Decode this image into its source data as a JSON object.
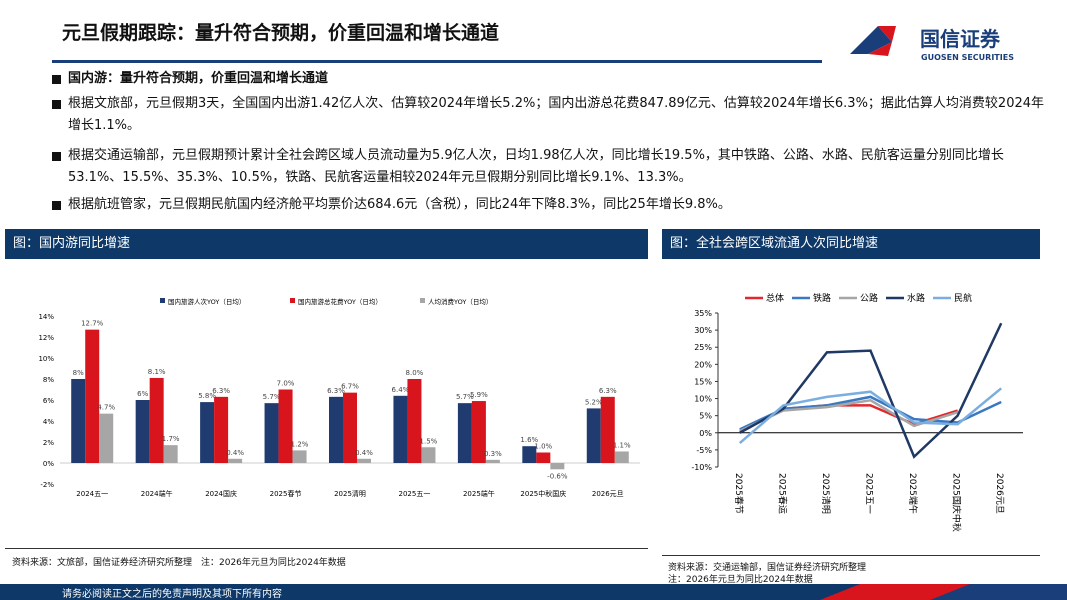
{
  "header": {
    "title": "元旦假期跟踪：量升符合预期，价重回温和增长通道",
    "logo": "国信证券",
    "logo_en": "GUOSEN SECURITIES"
  },
  "bullets": [
    "国内游：量升符合预期，价重回温和增长通道",
    "根据文旅部，元旦假期3天，全国国内出游1.42亿人次、估算较2024年增长5.2%；国内出游总花费847.89亿元、估算较2024年增长6.3%；据此估算人均消费较2024年增长1.1%。",
    "根据交通运输部，元旦假期预计累计全社会跨区域人员流动量为5.9亿人次，日均1.98亿人次，同比增长19.5%，其中铁路、公路、水路、民航客运量分别同比增长53.1%、15.5%、35.3%、10.5%，铁路、民航客运量相较2024年元旦假期分别同比增长9.1%、13.3%。",
    "根据航班管家，元旦假期民航国内经济舱平均票价达684.6元（含税），同比24年下降8.3%，同比25年增长9.8%。"
  ],
  "chart_data": [
    {
      "type": "bar",
      "title": "图：国内游同比增速",
      "source": "资料来源：文旅部，国信证券经济研究所整理　注：2026年元旦为同比2024年数据",
      "categories": [
        "2024五一",
        "2024端午",
        "2024国庆",
        "2025春节",
        "2025清明",
        "2025五一",
        "2025端午",
        "2025中秋国庆",
        "2026元旦"
      ],
      "series": [
        {
          "name": "国内旅游人次YOY（日均）",
          "color": "#1f3b70",
          "values": [
            8,
            6,
            5.8,
            5.7,
            6.3,
            6.4,
            5.7,
            1.6,
            5.2
          ],
          "value_labels": [
            "8%",
            "6%",
            "5.8%",
            "5.7%",
            "6.3%",
            "6.4%",
            "5.7%",
            "1.6%",
            "5.2%"
          ]
        },
        {
          "name": "国内旅游总花费YOY（日均）",
          "color": "#d8141c",
          "values": [
            12.7,
            8.1,
            6.3,
            7.0,
            6.7,
            8.0,
            5.9,
            1.0,
            6.3
          ],
          "value_labels": [
            "12.7%",
            "8.1%",
            "6.3%",
            "7.0%",
            "6.7%",
            "8.0%",
            "5.9%",
            "1.0%",
            "6.3%"
          ]
        },
        {
          "name": "人均消费YOY（日均）",
          "color": "#a6a6a6",
          "values": [
            4.7,
            1.7,
            0.4,
            1.2,
            0.4,
            1.5,
            0.3,
            -0.6,
            1.1
          ],
          "value_labels": [
            "4.7%",
            "1.7%",
            "0.4%",
            "1.2%",
            "0.4%",
            "1.5%",
            "0.3%",
            "-0.6%",
            "1.1%"
          ]
        }
      ],
      "ylim": [
        -2,
        14
      ],
      "yticks": [
        {
          "value": -2,
          "label": "-2%"
        },
        {
          "value": 0,
          "label": "0%"
        },
        {
          "value": 2,
          "label": "2%"
        },
        {
          "value": 4,
          "label": "4%"
        },
        {
          "value": 6,
          "label": "6%"
        },
        {
          "value": 8,
          "label": "8%"
        },
        {
          "value": 10,
          "label": "10%"
        },
        {
          "value": 12,
          "label": "12%"
        },
        {
          "value": 14,
          "label": "14%"
        }
      ]
    },
    {
      "type": "line",
      "title": "图：全社会跨区域流通人次同比增速",
      "source": "资料来源：交通运输部，国信证券经济研究所整理",
      "note": "注：2026年元旦为同比2024年数据",
      "categories": [
        "2025春节",
        "2025春运",
        "2025清明",
        "2025五一",
        "2025端午",
        "2025国庆中秋",
        "2026元旦"
      ],
      "series": [
        {
          "name": "总体",
          "color": "#e0282d",
          "values": [
            0.5,
            7,
            8,
            8,
            2.5,
            6.5,
            null
          ]
        },
        {
          "name": "铁路",
          "color": "#3b78c2",
          "values": [
            1,
            7,
            8,
            10.5,
            4,
            3,
            9
          ]
        },
        {
          "name": "公路",
          "color": "#a6a6a6",
          "values": [
            0.5,
            6.5,
            7.5,
            9.5,
            2,
            6,
            null
          ]
        },
        {
          "name": "水路",
          "color": "#1f3864",
          "values": [
            0,
            7,
            23.5,
            24,
            -7,
            5,
            32
          ]
        },
        {
          "name": "民航",
          "color": "#7aaee0",
          "values": [
            -3,
            8,
            10.5,
            12,
            3,
            2.5,
            13
          ]
        }
      ],
      "ylim": [
        -10,
        35
      ],
      "yticks": [
        {
          "value": -10,
          "label": "-10%"
        },
        {
          "value": -5,
          "label": "-5%"
        },
        {
          "value": 0,
          "label": "0%"
        },
        {
          "value": 5,
          "label": "5%"
        },
        {
          "value": 10,
          "label": "10%"
        },
        {
          "value": 15,
          "label": "15%"
        },
        {
          "value": 20,
          "label": "20%"
        },
        {
          "value": 25,
          "label": "25%"
        },
        {
          "value": 30,
          "label": "30%"
        },
        {
          "value": 35,
          "label": "35%"
        }
      ]
    }
  ],
  "footer": "请务必阅读正文之后的免责声明及其项下所有内容"
}
